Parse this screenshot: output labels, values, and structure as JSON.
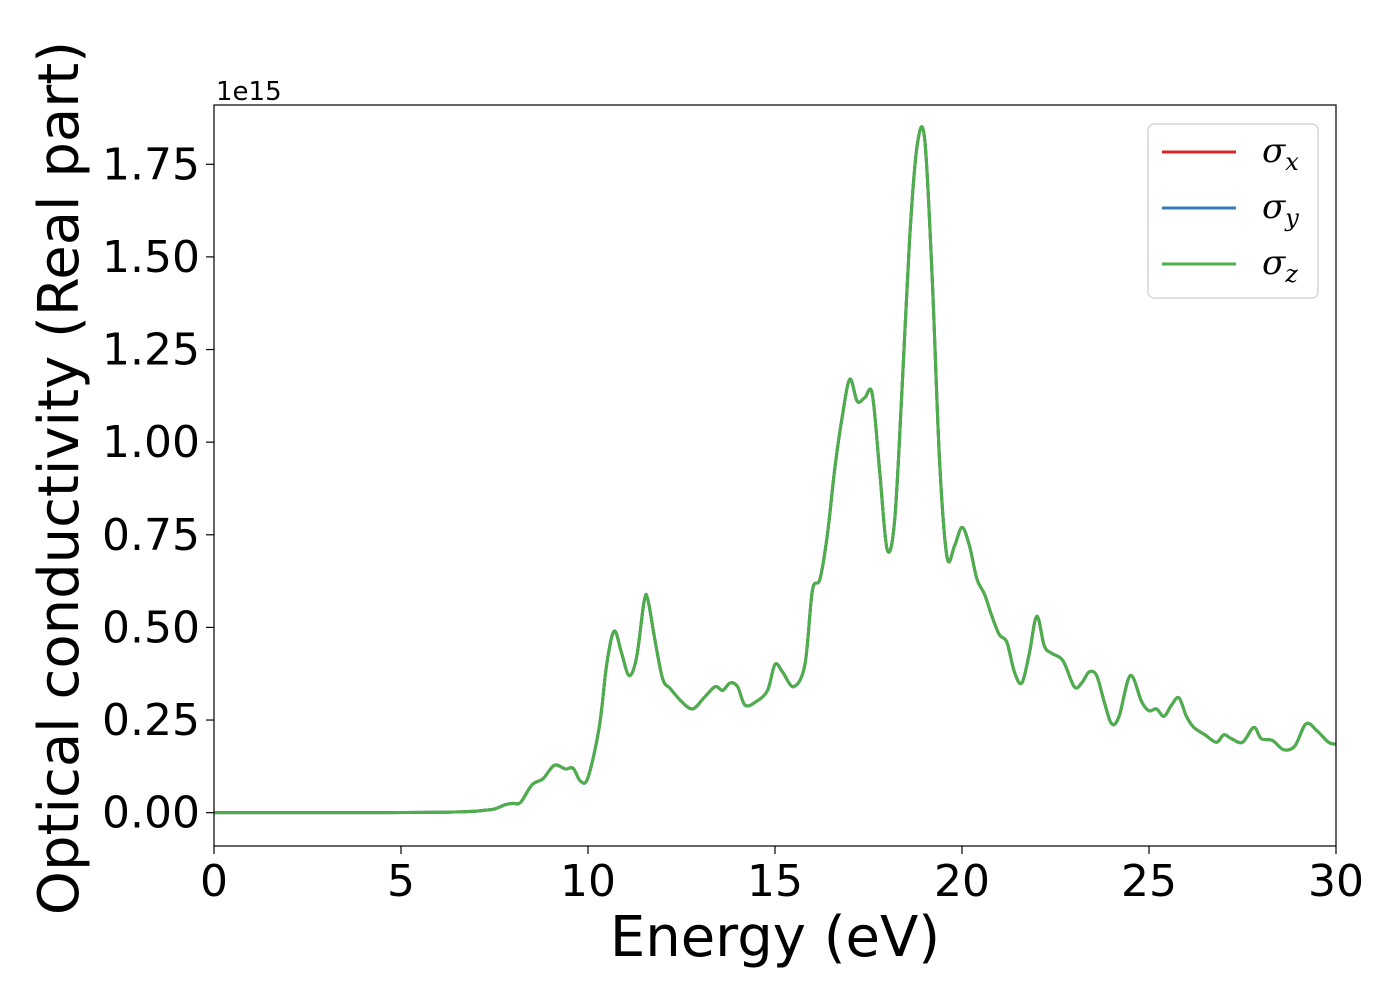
{
  "chart_data": {
    "type": "line",
    "xlabel": "Energy (eV)",
    "ylabel": "Optical conductivity (Real part)",
    "y_offset_label": "1e15",
    "xlim": [
      0,
      30
    ],
    "ylim": [
      -0.09,
      1.91
    ],
    "xticks": [
      0,
      5,
      10,
      15,
      20,
      25,
      30
    ],
    "yticks": [
      0.0,
      0.25,
      0.5,
      0.75,
      1.0,
      1.25,
      1.5,
      1.75
    ],
    "xtick_labels": [
      "0",
      "5",
      "10",
      "15",
      "20",
      "25",
      "30"
    ],
    "ytick_labels": [
      "0.00",
      "0.25",
      "0.50",
      "0.75",
      "1.00",
      "1.25",
      "1.50",
      "1.75"
    ],
    "grid": false,
    "legend_position": "top-right",
    "colors": {
      "sigma_x": "#d62728",
      "sigma_y": "#3a7ab5",
      "sigma_z": "#4daf4a"
    },
    "series": [
      {
        "name": "σx",
        "symbol": "σ",
        "subscript": "x",
        "color": "#d62728",
        "identical_to": "σz"
      },
      {
        "name": "σy",
        "symbol": "σ",
        "subscript": "y",
        "color": "#3a7ab5",
        "identical_to": "σz"
      },
      {
        "name": "σz",
        "symbol": "σ",
        "subscript": "z",
        "color": "#4daf4a"
      }
    ],
    "x": [
      0,
      2,
      4,
      6,
      6.8,
      7.2,
      7.5,
      7.8,
      8.0,
      8.2,
      8.5,
      8.8,
      9.1,
      9.4,
      9.6,
      9.8,
      10.0,
      10.3,
      10.5,
      10.7,
      10.9,
      11.1,
      11.3,
      11.5,
      11.6,
      11.8,
      12.0,
      12.2,
      12.5,
      12.8,
      13.1,
      13.4,
      13.6,
      13.8,
      14.0,
      14.2,
      14.5,
      14.8,
      15.0,
      15.2,
      15.5,
      15.8,
      16.0,
      16.2,
      16.4,
      16.6,
      16.8,
      17.0,
      17.2,
      17.4,
      17.6,
      17.8,
      18.0,
      18.2,
      18.4,
      18.6,
      18.8,
      19.0,
      19.2,
      19.4,
      19.6,
      19.8,
      20.0,
      20.2,
      20.4,
      20.6,
      20.8,
      21.0,
      21.2,
      21.4,
      21.6,
      21.8,
      22.0,
      22.2,
      22.4,
      22.7,
      23.0,
      23.2,
      23.4,
      23.6,
      23.8,
      24.0,
      24.2,
      24.5,
      24.8,
      25.0,
      25.2,
      25.4,
      25.6,
      25.8,
      26.0,
      26.2,
      26.5,
      26.8,
      27.0,
      27.2,
      27.5,
      27.8,
      28.0,
      28.3,
      28.6,
      28.9,
      29.2,
      29.5,
      29.8,
      30.0
    ],
    "y": [
      0,
      0,
      0,
      0.001,
      0.003,
      0.006,
      0.01,
      0.022,
      0.025,
      0.028,
      0.075,
      0.092,
      0.128,
      0.118,
      0.12,
      0.085,
      0.095,
      0.23,
      0.4,
      0.49,
      0.43,
      0.37,
      0.42,
      0.57,
      0.575,
      0.46,
      0.36,
      0.335,
      0.3,
      0.28,
      0.31,
      0.34,
      0.33,
      0.35,
      0.34,
      0.29,
      0.3,
      0.33,
      0.4,
      0.38,
      0.34,
      0.4,
      0.6,
      0.63,
      0.75,
      0.93,
      1.07,
      1.17,
      1.11,
      1.12,
      1.13,
      0.92,
      0.71,
      0.79,
      1.15,
      1.55,
      1.8,
      1.82,
      1.45,
      0.95,
      0.69,
      0.72,
      0.77,
      0.72,
      0.63,
      0.59,
      0.53,
      0.48,
      0.46,
      0.38,
      0.35,
      0.43,
      0.53,
      0.45,
      0.43,
      0.41,
      0.34,
      0.35,
      0.38,
      0.37,
      0.3,
      0.24,
      0.26,
      0.37,
      0.3,
      0.275,
      0.28,
      0.26,
      0.29,
      0.31,
      0.26,
      0.23,
      0.21,
      0.19,
      0.21,
      0.2,
      0.19,
      0.23,
      0.2,
      0.195,
      0.17,
      0.18,
      0.24,
      0.22,
      0.19,
      0.185
    ]
  }
}
